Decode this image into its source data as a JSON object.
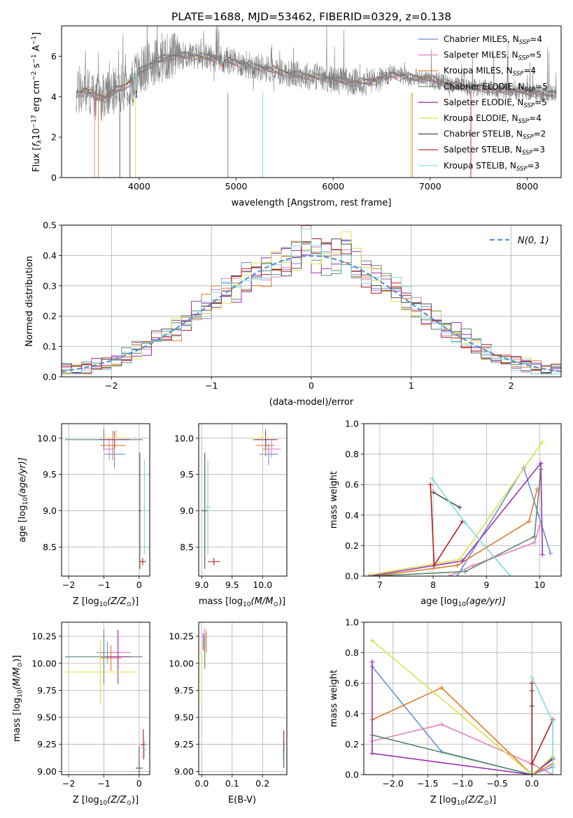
{
  "figure": {
    "title": "PLATE=1688, MJD=53462, FIBERID=0329, z=0.138"
  },
  "colors": {
    "Chabrier MILES": "#6a8fd8",
    "Salpeter MILES": "#e37fbf",
    "Kroupa MILES": "#e07a2a",
    "Chabrier ELODIE": "#5b8a6a",
    "Salpeter ELODIE": "#9b2fb5",
    "Kroupa ELODIE": "#d4e54a",
    "Chabrier STELIB": "#505050",
    "Salpeter STELIB": "#b01e1e",
    "Kroupa STELIB": "#80d8dc",
    "observed": "#808080",
    "normal": "#5b8fd8"
  },
  "chart_data": [
    {
      "id": "spectrum",
      "type": "line",
      "xlabel": "wavelength [Angstrom, rest frame]",
      "xlim": [
        3200,
        8350
      ],
      "ylim": [
        0,
        7.5
      ],
      "xticks": [
        4000,
        5000,
        6000,
        7000,
        8000
      ],
      "yticks": [
        0,
        2,
        4,
        6
      ],
      "grid": false,
      "legend_position": "top-right",
      "legend": [
        {
          "label": "Chabrier MILES, N",
          "sub": "SSP",
          "suffix": "=4"
        },
        {
          "label": "Salpeter MILES, N",
          "sub": "SSP",
          "suffix": "=5"
        },
        {
          "label": "Kroupa MILES, N",
          "sub": "SSP",
          "suffix": "=4"
        },
        {
          "label": "Chabrier ELODIE, N",
          "sub": "SSP",
          "suffix": "=5"
        },
        {
          "label": "Salpeter ELODIE, N",
          "sub": "SSP",
          "suffix": "=5"
        },
        {
          "label": "Kroupa ELODIE, N",
          "sub": "SSP",
          "suffix": "=4"
        },
        {
          "label": "Chabrier STELIB, N",
          "sub": "SSP",
          "suffix": "=2"
        },
        {
          "label": "Salpeter STELIB, N",
          "sub": "SSP",
          "suffix": "=3"
        },
        {
          "label": "Kroupa STELIB, N",
          "sub": "SSP",
          "suffix": "=3"
        }
      ],
      "continuum": [
        [
          3350,
          4.1
        ],
        [
          3450,
          4.35
        ],
        [
          3550,
          4.0
        ],
        [
          3650,
          3.95
        ],
        [
          3750,
          4.3
        ],
        [
          3850,
          4.5
        ],
        [
          3950,
          5.0
        ],
        [
          4050,
          5.4
        ],
        [
          4150,
          5.7
        ],
        [
          4250,
          5.9
        ],
        [
          4400,
          6.05
        ],
        [
          4600,
          6.0
        ],
        [
          4800,
          5.9
        ],
        [
          5000,
          5.7
        ],
        [
          5200,
          5.5
        ],
        [
          5400,
          5.3
        ],
        [
          5600,
          5.1
        ],
        [
          5800,
          5.0
        ],
        [
          6000,
          4.85
        ],
        [
          6200,
          4.7
        ],
        [
          6400,
          4.75
        ],
        [
          6600,
          5.1
        ],
        [
          6800,
          4.95
        ],
        [
          7000,
          4.9
        ],
        [
          7200,
          4.6
        ],
        [
          7400,
          4.45
        ],
        [
          7600,
          4.4
        ],
        [
          7800,
          4.3
        ],
        [
          8000,
          4.25
        ],
        [
          8200,
          4.15
        ],
        [
          8300,
          4.2
        ]
      ]
    },
    {
      "id": "residuals",
      "type": "bar",
      "xlabel": "(data-model)/error",
      "ylabel": "Normed distribution",
      "xlim": [
        -2.5,
        2.5
      ],
      "ylim": [
        0,
        0.5
      ],
      "xticks": [
        -2,
        -1,
        0,
        1,
        2
      ],
      "yticks": [
        0.0,
        0.1,
        0.2,
        0.3,
        0.4,
        0.5
      ],
      "grid": true,
      "legend_position": "top-right",
      "legend": "N(0, 1)",
      "bin_width": 0.1
    },
    {
      "id": "age-vs-Z",
      "type": "scatter",
      "xlabel_pre": "Z [log",
      "xlabel_sub": "10",
      "xlabel_post": "(Z/Z",
      "xlabel_end": ")]",
      "ylabel_pre": "age  [log",
      "ylabel_sub": "10",
      "ylabel_post": "(age/yr)]",
      "xlim": [
        -2.2,
        0.3
      ],
      "ylim": [
        8.1,
        10.2
      ],
      "xticks": [
        -2,
        -1,
        0
      ],
      "yticks": [
        8.5,
        9.0,
        9.5,
        10.0
      ],
      "grid": true,
      "points": [
        {
          "m": "Chabrier MILES",
          "x": -0.7,
          "y": 9.78,
          "xe": 0.3,
          "ye": 0.2
        },
        {
          "m": "Salpeter MILES",
          "x": -0.85,
          "y": 9.85,
          "xe": 0.15,
          "ye": 0.15
        },
        {
          "m": "Kroupa MILES",
          "x": -0.75,
          "y": 9.9,
          "xe": 0.35,
          "ye": 0.2
        },
        {
          "m": "Chabrier ELODIE",
          "x": -1.0,
          "y": 9.98,
          "xe": 1.1,
          "ye": 0.15
        },
        {
          "m": "Salpeter ELODIE",
          "x": -0.7,
          "y": 9.98,
          "xe": 0.45,
          "ye": 0.12
        },
        {
          "m": "Kroupa ELODIE",
          "x": -0.65,
          "y": 10.0,
          "xe": 0.35,
          "ye": 0.12
        },
        {
          "m": "Chabrier STELIB",
          "x": 0.02,
          "y": 9.0,
          "xe": 0.03,
          "ye": 0.8
        },
        {
          "m": "Salpeter STELIB",
          "x": 0.1,
          "y": 8.3,
          "xe": 0.1,
          "ye": 0.05
        },
        {
          "m": "Kroupa STELIB",
          "x": 0.15,
          "y": 9.05,
          "xe": 0.03,
          "ye": 0.65
        }
      ]
    },
    {
      "id": "age-vs-mass",
      "type": "scatter",
      "xlabel_pre": "mass [log",
      "xlabel_sub": "10",
      "xlabel_post": "(M/M",
      "xlabel_end": ")]",
      "xlim": [
        8.95,
        10.4
      ],
      "ylim": [
        8.1,
        10.2
      ],
      "xticks": [
        9.0,
        9.5,
        10.0
      ],
      "yticks": [
        8.5,
        9.0,
        9.5,
        10.0
      ],
      "grid": true,
      "points": [
        {
          "m": "Chabrier MILES",
          "x": 10.1,
          "y": 9.78,
          "xe": 0.15,
          "ye": 0.15
        },
        {
          "m": "Salpeter MILES",
          "x": 10.15,
          "y": 9.85,
          "xe": 0.15,
          "ye": 0.12
        },
        {
          "m": "Kroupa MILES",
          "x": 10.05,
          "y": 9.9,
          "xe": 0.15,
          "ye": 0.15
        },
        {
          "m": "Chabrier ELODIE",
          "x": 10.05,
          "y": 9.98,
          "xe": 0.15,
          "ye": 0.15
        },
        {
          "m": "Salpeter ELODIE",
          "x": 10.05,
          "y": 9.98,
          "xe": 0.2,
          "ye": 0.1
        },
        {
          "m": "Kroupa ELODIE",
          "x": 10.0,
          "y": 10.0,
          "xe": 0.2,
          "ye": 0.1
        },
        {
          "m": "Chabrier STELIB",
          "x": 9.05,
          "y": 9.0,
          "xe": 0.05,
          "ye": 0.8
        },
        {
          "m": "Salpeter STELIB",
          "x": 9.2,
          "y": 8.3,
          "xe": 0.1,
          "ye": 0.05
        },
        {
          "m": "Kroupa STELIB",
          "x": 9.1,
          "y": 9.05,
          "xe": 0.05,
          "ye": 0.65
        }
      ]
    },
    {
      "id": "weight-vs-age",
      "type": "line",
      "xlabel_pre": "age  [log",
      "xlabel_sub": "10",
      "xlabel_post": "(age/yr)]",
      "ylabel": "mass weight",
      "xlim": [
        6.7,
        10.4
      ],
      "ylim": [
        0,
        1.0
      ],
      "xticks": [
        7,
        8,
        9,
        10
      ],
      "yticks": [
        0.0,
        0.2,
        0.4,
        0.6,
        0.8,
        1.0
      ],
      "grid": true,
      "series": [
        {
          "m": "Chabrier MILES",
          "x": [
            8.45,
            9.7,
            10.2
          ],
          "y": [
            0.0,
            0.71,
            0.15
          ]
        },
        {
          "m": "Salpeter MILES",
          "x": [
            8.3,
            8.75,
            9.9,
            10.0
          ],
          "y": [
            0.0,
            0.07,
            0.22,
            0.33
          ]
        },
        {
          "m": "Kroupa MILES",
          "x": [
            6.9,
            8.45,
            9.8,
            9.95
          ],
          "y": [
            0.0,
            0.07,
            0.36,
            0.57
          ]
        },
        {
          "m": "Chabrier ELODIE",
          "x": [
            6.85,
            8.6,
            9.9,
            10.02
          ],
          "y": [
            0.0,
            0.03,
            0.26,
            0.7
          ]
        },
        {
          "m": "Salpeter ELODIE",
          "x": [
            6.8,
            8.55,
            10.02,
            10.05
          ],
          "y": [
            0.0,
            0.1,
            0.74,
            0.14
          ]
        },
        {
          "m": "Kroupa ELODIE",
          "x": [
            6.85,
            8.5,
            10.05
          ],
          "y": [
            0.01,
            0.11,
            0.88
          ]
        },
        {
          "m": "Chabrier STELIB",
          "x": [
            8.0,
            8.5
          ],
          "y": [
            0.55,
            0.45
          ]
        },
        {
          "m": "Salpeter STELIB",
          "x": [
            7.95,
            8.02,
            8.55
          ],
          "y": [
            0.6,
            0.07,
            0.36
          ]
        },
        {
          "m": "Kroupa STELIB",
          "x": [
            7.98,
            8.6,
            9.45
          ],
          "y": [
            0.64,
            0.35,
            0.0
          ]
        }
      ]
    },
    {
      "id": "mass-vs-Z",
      "type": "scatter",
      "xlabel_pre": "Z [log",
      "xlabel_sub": "10",
      "xlabel_post": "(Z/Z",
      "xlabel_end": ")]",
      "ylabel_pre": "mass [log",
      "ylabel_sub": "10",
      "ylabel_post": "(M/M",
      "ylabel_end": ")]",
      "xlim": [
        -2.2,
        0.3
      ],
      "ylim": [
        8.97,
        10.38
      ],
      "xticks": [
        -2,
        -1,
        0
      ],
      "yticks": [
        9.0,
        9.25,
        9.5,
        9.75,
        10.0,
        10.25
      ],
      "grid": true,
      "points": [
        {
          "m": "Chabrier MILES",
          "x": -0.9,
          "y": 10.1,
          "xe": 0.3,
          "ye": 0.1
        },
        {
          "m": "Salpeter MILES",
          "x": -0.6,
          "y": 10.1,
          "xe": 0.35,
          "ye": 0.15
        },
        {
          "m": "Kroupa MILES",
          "x": -0.8,
          "y": 10.05,
          "xe": 0.3,
          "ye": 0.12
        },
        {
          "m": "Chabrier ELODIE",
          "x": -1.0,
          "y": 10.06,
          "xe": 1.1,
          "ye": 0.25
        },
        {
          "m": "Salpeter ELODIE",
          "x": -0.6,
          "y": 10.06,
          "xe": 0.35,
          "ye": 0.25
        },
        {
          "m": "Kroupa ELODIE",
          "x": -1.1,
          "y": 9.92,
          "xe": 1.0,
          "ye": 0.3
        },
        {
          "m": "Chabrier STELIB",
          "x": 0.0,
          "y": 9.03,
          "xe": 0.1,
          "ye": 0.2
        },
        {
          "m": "Salpeter STELIB",
          "x": 0.12,
          "y": 9.25,
          "xe": 0.08,
          "ye": 0.14
        },
        {
          "m": "Kroupa STELIB",
          "x": 0.15,
          "y": 9.2,
          "xe": 0.05,
          "ye": 0.08
        }
      ]
    },
    {
      "id": "mass-vs-ebv",
      "type": "scatter",
      "xlabel": "E(B-V)",
      "xlim": [
        -0.01,
        0.28
      ],
      "ylim": [
        8.97,
        10.38
      ],
      "xticks": [
        0.0,
        0.1,
        0.2
      ],
      "yticks": [
        9.0,
        9.25,
        9.5,
        9.75,
        10.0,
        10.25
      ],
      "grid": true,
      "points": [
        {
          "m": "Chabrier MILES",
          "x": 0.01,
          "y": 10.2,
          "xe": 0.0,
          "ye": 0.08
        },
        {
          "m": "Salpeter MILES",
          "x": 0.01,
          "y": 10.25,
          "xe": 0.0,
          "ye": 0.08
        },
        {
          "m": "Kroupa MILES",
          "x": 0.015,
          "y": 10.2,
          "xe": 0.0,
          "ye": 0.1
        },
        {
          "m": "Chabrier ELODIE",
          "x": 0.01,
          "y": 10.1,
          "xe": 0.0,
          "ye": 0.15
        },
        {
          "m": "Salpeter ELODIE",
          "x": 0.005,
          "y": 10.2,
          "xe": 0.0,
          "ye": 0.08
        },
        {
          "m": "Kroupa ELODIE",
          "x": 0.0,
          "y": 9.9,
          "xe": 0.0,
          "ye": 0.3
        },
        {
          "m": "Chabrier STELIB",
          "x": 0.27,
          "y": 9.15,
          "xe": 0.0,
          "ye": 0.12
        },
        {
          "m": "Salpeter STELIB",
          "x": 0.27,
          "y": 9.28,
          "xe": 0.0,
          "ye": 0.1
        },
        {
          "m": "Kroupa STELIB",
          "x": 0.268,
          "y": 9.18,
          "xe": 0.0,
          "ye": 0.06
        }
      ]
    },
    {
      "id": "weight-vs-Z",
      "type": "line",
      "xlabel_pre": "Z [log",
      "xlabel_sub": "10",
      "xlabel_post": "(Z/Z",
      "xlabel_end": ")]",
      "ylabel": "mass weight",
      "xlim": [
        -2.42,
        0.42
      ],
      "ylim": [
        0,
        1.0
      ],
      "xticks": [
        -2.0,
        -1.5,
        -1.0,
        -0.5,
        0.0
      ],
      "yticks": [
        0.0,
        0.2,
        0.4,
        0.6,
        0.8,
        1.0
      ],
      "grid": true,
      "series": [
        {
          "m": "Chabrier MILES",
          "x": [
            -2.3,
            -1.3,
            0.0,
            0.3
          ],
          "y": [
            0.71,
            0.15,
            0.0,
            0.05
          ]
        },
        {
          "m": "Salpeter MILES",
          "x": [
            -2.3,
            -1.3,
            0.0,
            0.3
          ],
          "y": [
            0.22,
            0.33,
            0.07,
            0.0
          ]
        },
        {
          "m": "Kroupa MILES",
          "x": [
            -2.3,
            -1.3,
            0.0,
            0.3
          ],
          "y": [
            0.36,
            0.57,
            0.0,
            0.07
          ]
        },
        {
          "m": "Chabrier ELODIE",
          "x": [
            -2.3,
            0.0,
            0.3
          ],
          "y": [
            0.26,
            0.0,
            0.11
          ]
        },
        {
          "m": "Salpeter ELODIE",
          "x": [
            -2.3,
            -2.3,
            0.0,
            0.3
          ],
          "y": [
            0.74,
            0.14,
            0.0,
            0.1
          ]
        },
        {
          "m": "Kroupa ELODIE",
          "x": [
            -2.3,
            0.0,
            0.3
          ],
          "y": [
            0.88,
            0.0,
            0.12
          ]
        },
        {
          "m": "Chabrier STELIB",
          "x": [
            0.0,
            0.0,
            0.0
          ],
          "y": [
            0.55,
            0.45,
            0.0
          ]
        },
        {
          "m": "Salpeter STELIB",
          "x": [
            0.0,
            0.0,
            0.3
          ],
          "y": [
            0.6,
            0.07,
            0.36
          ]
        },
        {
          "m": "Kroupa STELIB",
          "x": [
            0.0,
            0.3,
            0.3
          ],
          "y": [
            0.64,
            0.35,
            0.0
          ]
        }
      ]
    }
  ]
}
